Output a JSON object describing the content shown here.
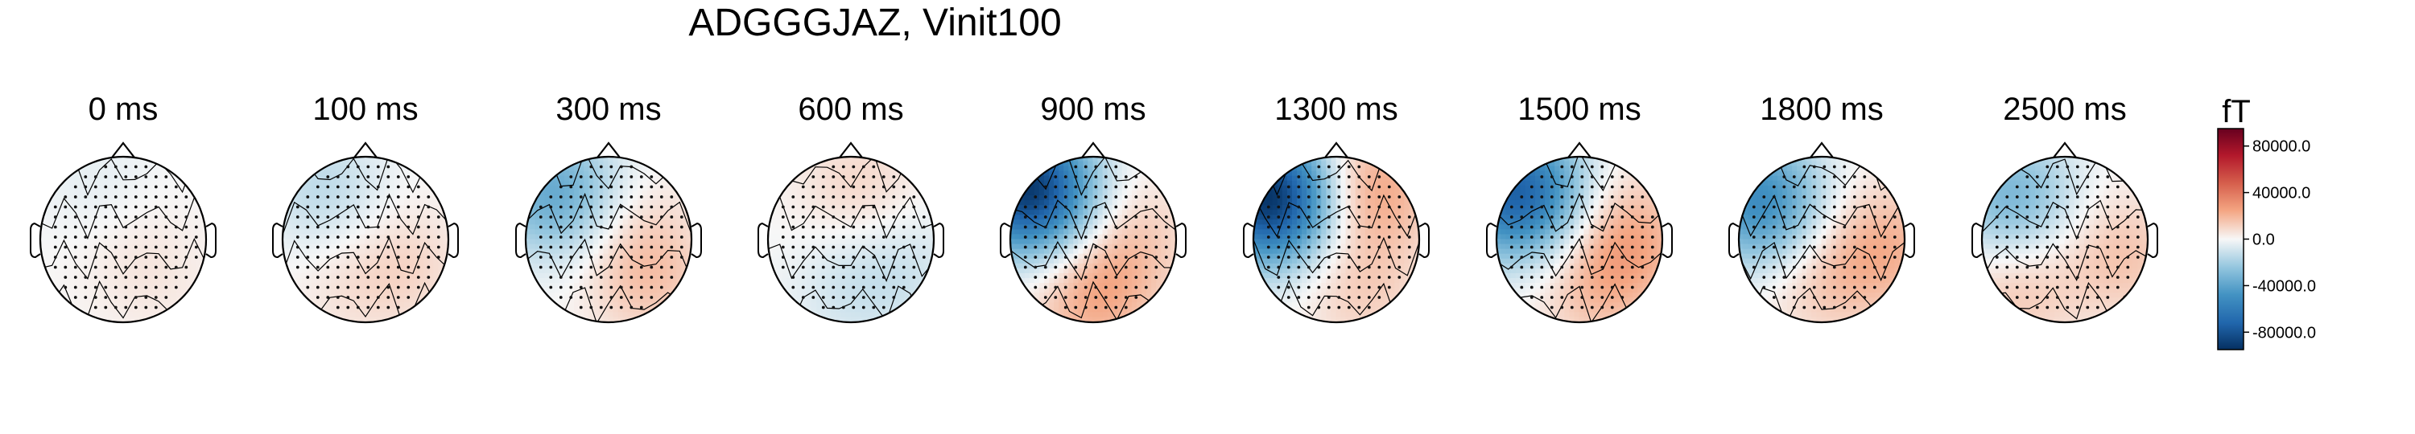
{
  "chart_data": {
    "type": "heatmap",
    "title": "ADGGGJAZ, Vinit100",
    "times": [
      "0 ms",
      "100 ms",
      "300 ms",
      "600 ms",
      "900 ms",
      "1300 ms",
      "1500 ms",
      "1800 ms",
      "2500 ms"
    ],
    "colorbar": {
      "unit": "fT",
      "ticks": [
        "80000.0",
        "40000.0",
        "0.0",
        "-40000.0",
        "-80000.0"
      ],
      "tick_values": [
        80000,
        40000,
        0,
        -40000,
        -80000
      ],
      "range": [
        -95000,
        95000
      ],
      "colormap": "RdBu_r",
      "colors": {
        "high": "#67001f",
        "mid_high": "#e8a084",
        "zero": "#f7f7f7",
        "mid_low": "#a8cfe5",
        "low": "#053061"
      }
    },
    "topomaps": [
      {
        "time": "0 ms",
        "field": [
          {
            "u": 0.0,
            "v": 0.0,
            "value": 3000
          },
          {
            "u": -0.6,
            "v": -0.3,
            "value": -5000
          },
          {
            "u": 0.5,
            "v": 0.4,
            "value": 4000
          }
        ]
      },
      {
        "time": "100 ms",
        "field": [
          {
            "u": -0.6,
            "v": -0.5,
            "value": -14000
          },
          {
            "u": 0.3,
            "v": 0.5,
            "value": 9000
          },
          {
            "u": 0.6,
            "v": -0.2,
            "value": 5000
          }
        ]
      },
      {
        "time": "300 ms",
        "field": [
          {
            "u": -0.55,
            "v": -0.65,
            "value": -38000
          },
          {
            "u": 0.5,
            "v": 0.5,
            "value": 12000
          },
          {
            "u": 0.0,
            "v": 0.3,
            "value": 9000
          }
        ]
      },
      {
        "time": "600 ms",
        "field": [
          {
            "u": -0.6,
            "v": 0.1,
            "value": 10000
          },
          {
            "u": 0.6,
            "v": 0.0,
            "value": -9000
          },
          {
            "u": 0.3,
            "v": 0.7,
            "value": -8000
          }
        ]
      },
      {
        "time": "900 ms",
        "field": [
          {
            "u": -0.6,
            "v": -0.78,
            "value": -92000
          },
          {
            "u": 0.7,
            "v": 0.0,
            "value": 22000
          },
          {
            "u": 0.0,
            "v": 0.5,
            "value": 12000
          }
        ]
      },
      {
        "time": "1300 ms",
        "field": [
          {
            "u": -0.5,
            "v": -0.8,
            "value": -95000
          },
          {
            "u": -0.6,
            "v": 0.4,
            "value": 26000
          },
          {
            "u": 0.6,
            "v": 0.3,
            "value": 12000
          }
        ]
      },
      {
        "time": "1500 ms",
        "field": [
          {
            "u": -0.55,
            "v": -0.75,
            "value": -75000
          },
          {
            "u": 0.0,
            "v": 0.6,
            "value": 22000
          },
          {
            "u": 0.6,
            "v": 0.2,
            "value": 14000
          }
        ]
      },
      {
        "time": "1800 ms",
        "field": [
          {
            "u": -0.45,
            "v": -0.75,
            "value": -52000
          },
          {
            "u": 0.1,
            "v": 0.75,
            "value": 20000
          },
          {
            "u": 0.5,
            "v": 0.0,
            "value": 12000
          }
        ]
      },
      {
        "time": "2500 ms",
        "field": [
          {
            "u": -0.5,
            "v": -0.65,
            "value": -32000
          },
          {
            "u": 0.6,
            "v": -0.6,
            "value": 14000
          },
          {
            "u": 0.2,
            "v": 0.7,
            "value": 15000
          }
        ]
      }
    ]
  }
}
